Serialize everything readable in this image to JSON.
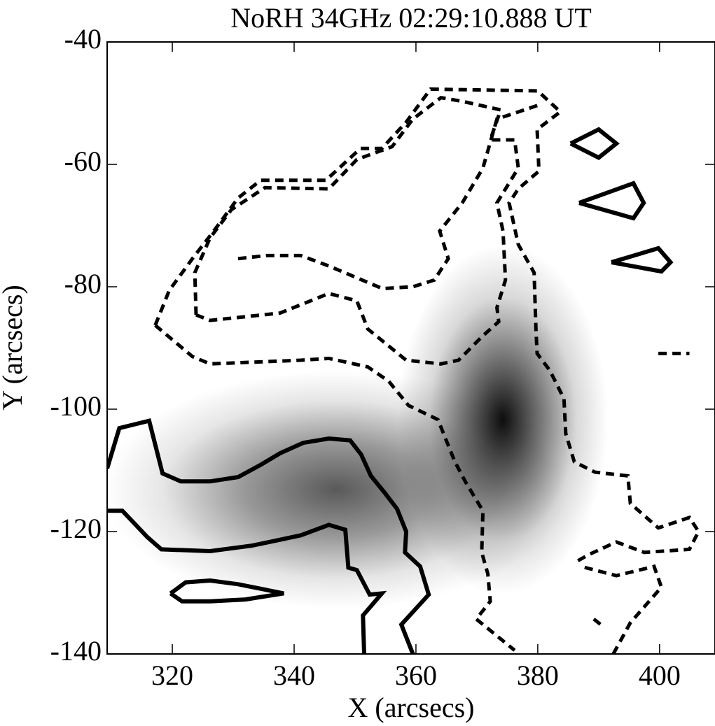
{
  "chart_data": {
    "type": "contour",
    "title": "NoRH 34GHz 02:29:10.888 UT",
    "xlabel": "X (arcsecs)",
    "ylabel": "Y (arcsecs)",
    "xlim": [
      309.3,
      409.1
    ],
    "ylim": [
      -140,
      -40
    ],
    "xticks": [
      320,
      340,
      360,
      380,
      400
    ],
    "yticks": [
      -40,
      -60,
      -80,
      -100,
      -120,
      -140
    ],
    "series": [
      {
        "style": "solid",
        "color": "#000000",
        "x": [
          309.3,
          311.3,
          316.2,
          318.4,
          321.4,
          326.2,
          330.8,
          334.5,
          337.7,
          341.5,
          345.7,
          349.2,
          351.0,
          352.6,
          354.9,
          356.9,
          358.4,
          358.2,
          360.7,
          362.1,
          357.6,
          359.5
        ],
        "y": [
          -109.7,
          -103.1,
          -101.9,
          -110.5,
          -111.8,
          -111.8,
          -111.1,
          -109.1,
          -107.2,
          -105.5,
          -104.8,
          -105.1,
          -107.4,
          -110.9,
          -113.7,
          -116.3,
          -120.0,
          -123.4,
          -125.7,
          -130.3,
          -135.2,
          -140
        ]
      },
      {
        "style": "solid",
        "color": "#000000",
        "x": [
          309.3,
          311.8,
          315.9,
          318.2,
          326.2,
          333.1,
          341.1,
          345.7,
          348.4,
          348.9,
          350.3,
          352.4,
          354.4,
          351.3,
          351.5
        ],
        "y": [
          -116.6,
          -116.6,
          -120.9,
          -122.9,
          -123.2,
          -122.3,
          -120.6,
          -118.9,
          -119.7,
          -125.9,
          -126.3,
          -130.3,
          -130.1,
          -133.7,
          -140
        ]
      },
      {
        "style": "solid",
        "color": "#000000",
        "x": [
          319.7,
          322.2,
          326.2,
          330.8,
          338.3,
          332.0,
          326.2,
          321.6,
          319.7
        ],
        "y": [
          -130.1,
          -128.3,
          -128.0,
          -128.6,
          -130.1,
          -131.1,
          -131.4,
          -131.4,
          -130.1
        ]
      },
      {
        "style": "solid",
        "color": "#000000",
        "x": [
          385.4,
          390.0,
          392.9,
          390.0,
          385.4
        ],
        "y": [
          -56.6,
          -54.3,
          -56.6,
          -58.9,
          -56.6
        ]
      },
      {
        "style": "solid",
        "color": "#000000",
        "x": [
          386.8,
          395.7,
          397.4,
          395.7,
          386.8
        ],
        "y": [
          -66.3,
          -63.1,
          -66.3,
          -68.8,
          -66.3
        ]
      },
      {
        "style": "solid",
        "color": "#000000",
        "x": [
          392.1,
          399.8,
          401.8,
          400.3,
          392.1
        ],
        "y": [
          -76.0,
          -73.7,
          -76.0,
          -77.5,
          -76.0
        ]
      },
      {
        "style": "dashed",
        "color": "#000000",
        "x": [
          317.2,
          319.5,
          323.3,
          326.8,
          330.8,
          334.5,
          345.2,
          350.9,
          354.4,
          358.4,
          362.4,
          380.0,
          383.7,
          379.9,
          380.2,
          376.8,
          375.3,
          376.8,
          379.4,
          379.7,
          379.9,
          382.0,
          384.3,
          384.6,
          386.0,
          389.4,
          394.8,
          395.2,
          399.8,
          404.9,
          406.4,
          404.9,
          397.5,
          392.9,
          388.3,
          386.0
        ],
        "y": [
          -86.3,
          -80.6,
          -75.4,
          -70.9,
          -65.5,
          -62.6,
          -62.6,
          -57.4,
          -57.4,
          -53.1,
          -47.7,
          -48.0,
          -51.4,
          -54.3,
          -61.1,
          -64.0,
          -66.3,
          -73.1,
          -77.7,
          -86.9,
          -90.9,
          -93.7,
          -98.3,
          -104.0,
          -108.6,
          -110.3,
          -110.9,
          -115.4,
          -119.4,
          -117.7,
          -120.0,
          -122.9,
          -123.4,
          -121.7,
          -123.8,
          -125.1
        ]
      },
      {
        "style": "dashed",
        "color": "#000000",
        "x": [
          323.9,
          323.7,
          326.2,
          329.7,
          335.2,
          345.7,
          350.3,
          356.1,
          359.5,
          364.1,
          367.6,
          373.9,
          372.2,
          376.2,
          376.8,
          373.3,
          374.3,
          374.7,
          373.3,
          373.6,
          371.0,
          367.0,
          364.1,
          358.4,
          352.1,
          350.3,
          345.7,
          337.7,
          326.2,
          323.9
        ],
        "y": [
          -84.6,
          -77.7,
          -72.0,
          -67.4,
          -63.8,
          -64.0,
          -59.2,
          -57.1,
          -52.6,
          -49.1,
          -49.7,
          -51.1,
          -56.0,
          -56.0,
          -60.6,
          -66.3,
          -70.9,
          -78.9,
          -83.4,
          -85.7,
          -88.0,
          -92.0,
          -92.6,
          -92.0,
          -86.9,
          -82.3,
          -81.1,
          -84.3,
          -85.5,
          -84.6
        ]
      },
      {
        "style": "dashed",
        "color": "#000000",
        "x": [
          317.2,
          323.3,
          326.2,
          341.1,
          345.7,
          352.1,
          355.5,
          358.8,
          363.6,
          366.4,
          368.2,
          371.0,
          370.8,
          371.8,
          372.2,
          369.9,
          376.2
        ],
        "y": [
          -86.3,
          -91.4,
          -92.6,
          -92.0,
          -91.7,
          -93.1,
          -95.4,
          -99.4,
          -101.7,
          -108.6,
          -112.0,
          -116.6,
          -123.4,
          -126.9,
          -131.4,
          -134.3,
          -139.4
        ]
      },
      {
        "style": "dashed",
        "color": "#000000",
        "x": [
          330.8,
          335.4,
          341.1,
          345.7,
          354.5,
          359.5,
          363.0,
          365.3,
          363.9,
          367.6,
          371.0,
          373.3,
          380.2
        ],
        "y": [
          -75.4,
          -74.9,
          -74.9,
          -76.6,
          -80.3,
          -80.0,
          -78.9,
          -75.4,
          -70.9,
          -66.3,
          -60.6,
          -52.6,
          -50.3
        ]
      },
      {
        "style": "dashed",
        "color": "#000000",
        "x": [
          392.4,
          395.2,
          400.3,
          399.1,
          392.9,
          387.1
        ],
        "y": [
          -140,
          -134.9,
          -129.1,
          -125.7,
          -127.2,
          -125.7
        ]
      },
      {
        "style": "dashed",
        "color": "#000000",
        "x": [
          399.8,
          404.9
        ],
        "y": [
          -90.9,
          -90.9
        ]
      },
      {
        "style": "dashed",
        "color": "#000000",
        "x": [
          389.2,
          390.6
        ],
        "y": [
          -134.3,
          -135.4
        ]
      }
    ]
  }
}
